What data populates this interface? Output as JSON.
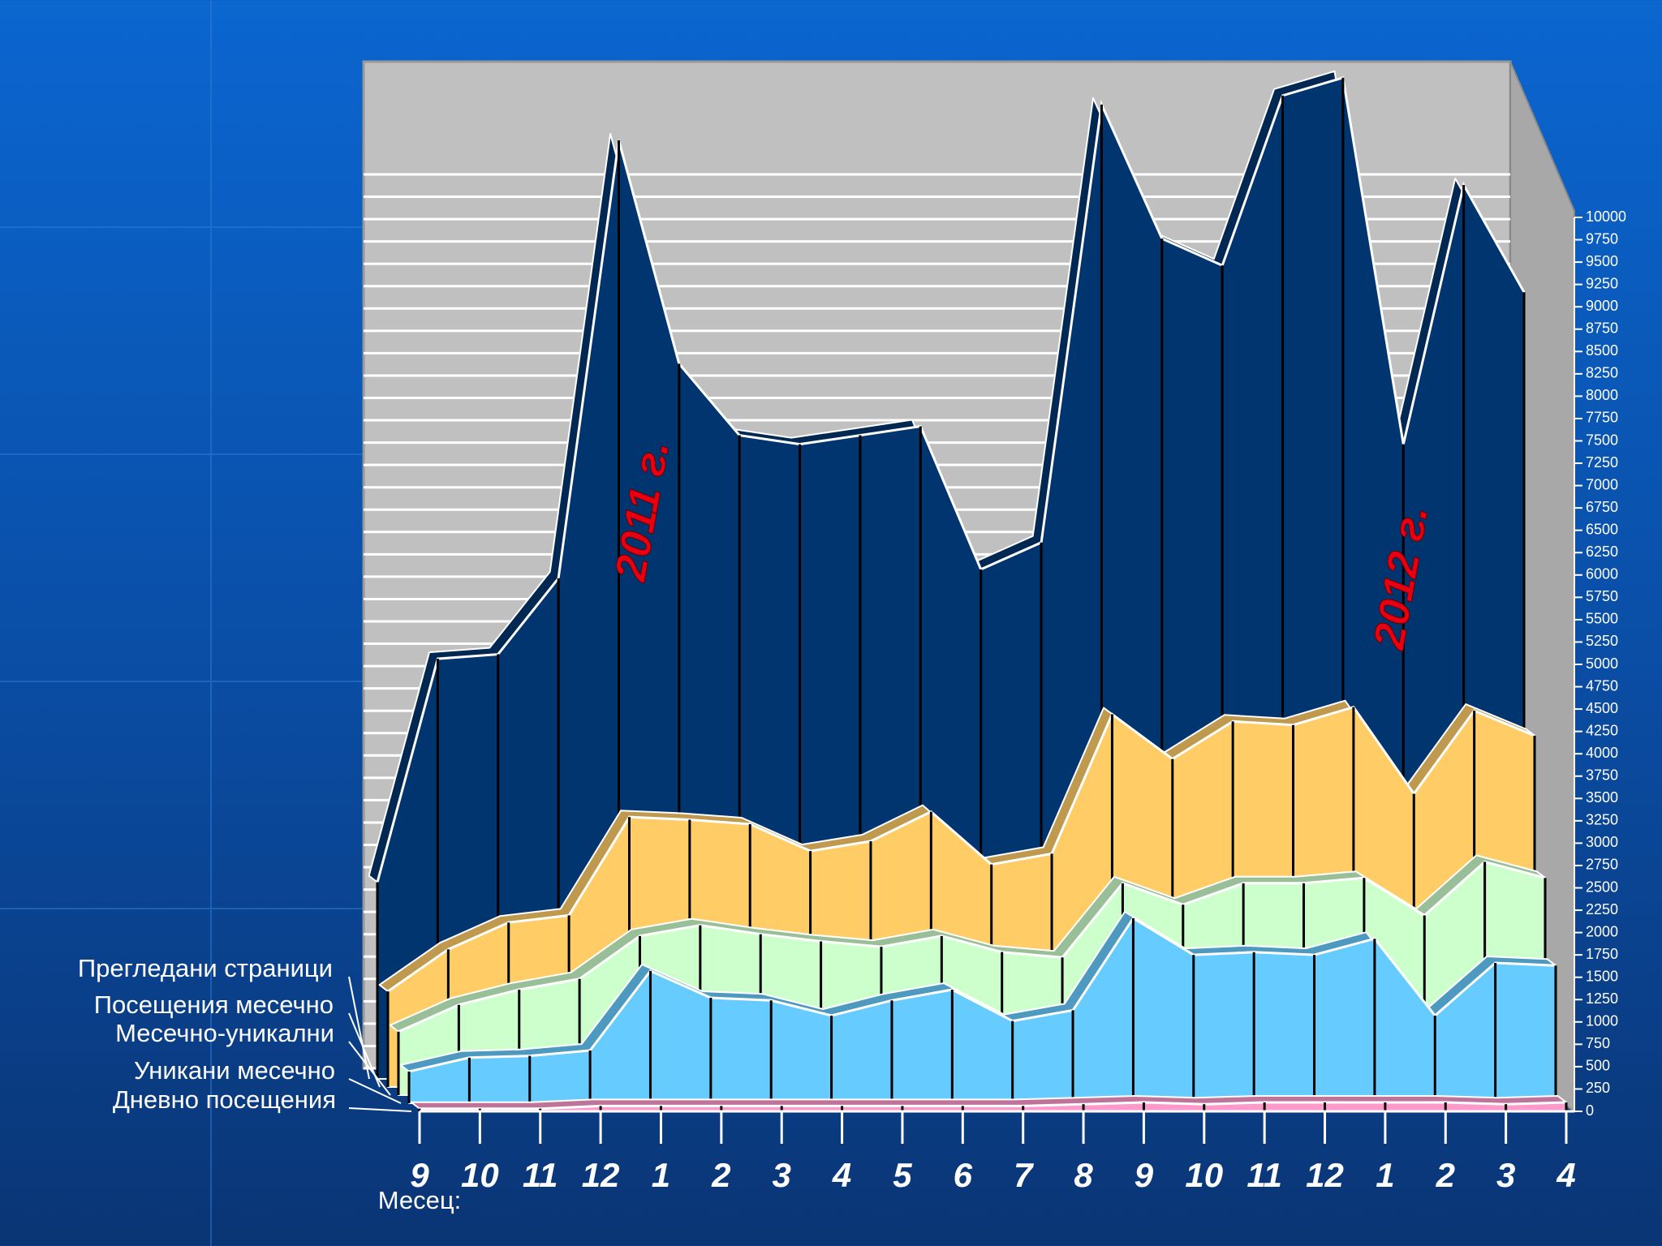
{
  "chart_data": {
    "type": "area3d",
    "categories": [
      "9",
      "10",
      "11",
      "12",
      "1",
      "2",
      "3",
      "4",
      "5",
      "6",
      "7",
      "8",
      "9",
      "10",
      "11",
      "12",
      "1",
      "2",
      "3",
      "4"
    ],
    "x_label": "Месец:",
    "annotations": [
      "2011 г.",
      "2012 г."
    ],
    "ylim": [
      0,
      10000
    ],
    "yticks": [
      0,
      250,
      500,
      750,
      1000,
      1250,
      1500,
      1750,
      2000,
      2250,
      2500,
      2750,
      3000,
      3250,
      3500,
      3750,
      4000,
      4250,
      4500,
      4750,
      5000,
      5250,
      5500,
      5750,
      6000,
      6250,
      6500,
      6750,
      7000,
      7250,
      7500,
      7750,
      8000,
      8250,
      8500,
      8750,
      9000,
      9250,
      9500,
      9750,
      10000
    ],
    "series": [
      {
        "name": "Прегледани страници",
        "color": "#00356f",
        "values": [
          2200,
          4700,
          4750,
          5600,
          10500,
          8000,
          7200,
          7100,
          7200,
          7300,
          5700,
          6000,
          10900,
          9400,
          9100,
          11000,
          11200,
          7100,
          10000,
          8800
        ]
      },
      {
        "name": "Посещения месечно",
        "color": "#ffcc66",
        "values": [
          1070,
          1540,
          1840,
          1920,
          3020,
          2990,
          2940,
          2640,
          2750,
          3080,
          2490,
          2610,
          4170,
          3670,
          4090,
          4050,
          4250,
          3280,
          4210,
          3930
        ]
      },
      {
        "name": "Месечно-уникални",
        "color": "#ccffcc",
        "values": [
          710,
          1010,
          1180,
          1300,
          1780,
          1900,
          1800,
          1720,
          1660,
          1780,
          1600,
          1540,
          2370,
          2130,
          2370,
          2370,
          2430,
          2010,
          2610,
          2430
        ]
      },
      {
        "name": "Уникани месечно",
        "color": "#66ccff",
        "values": [
          355,
          510,
          530,
          590,
          1480,
          1180,
          1150,
          980,
          1150,
          1270,
          920,
          1040,
          2070,
          1660,
          1690,
          1660,
          1840,
          980,
          1570,
          1540
        ]
      },
      {
        "name": "Дневно посещения",
        "color": "#ff99cc",
        "values": [
          30,
          30,
          30,
          60,
          60,
          60,
          60,
          60,
          60,
          60,
          60,
          80,
          100,
          80,
          100,
          100,
          100,
          100,
          80,
          100
        ]
      }
    ]
  }
}
